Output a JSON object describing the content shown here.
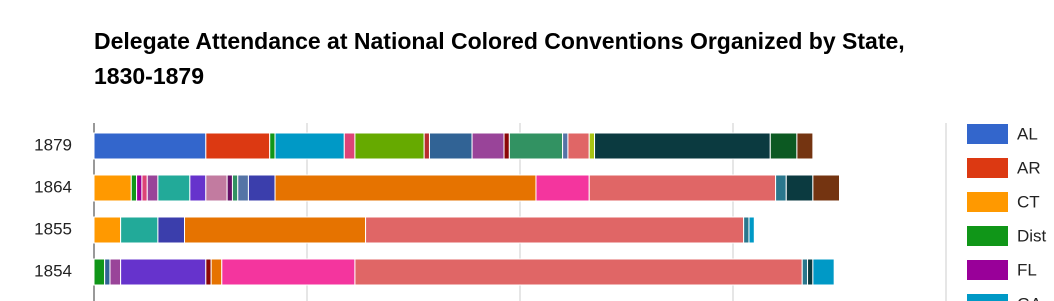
{
  "chart_data": {
    "type": "stacked-bar-horizontal",
    "title": "Delegate Attendance at National Colored Conventions Organized by State, 1830-1879",
    "categories": [
      "1879",
      "1864",
      "1855",
      "1854"
    ],
    "xlim": [
      0,
      160
    ],
    "xticks": [
      0,
      40,
      80,
      120,
      160
    ],
    "grid": true,
    "legend": "right",
    "series": [
      {
        "name": "AL",
        "color": "#3366cc",
        "values": [
          21,
          0,
          0,
          0
        ]
      },
      {
        "name": "AR",
        "color": "#dc3912",
        "values": [
          12,
          0,
          0,
          0
        ]
      },
      {
        "name": "CT",
        "color": "#ff9900",
        "values": [
          0,
          7,
          5,
          0
        ]
      },
      {
        "name": "Dist",
        "color": "#109618",
        "values": [
          1,
          1,
          0,
          2
        ]
      },
      {
        "name": "FL",
        "color": "#990099",
        "values": [
          0,
          1,
          0,
          0
        ]
      },
      {
        "name": "GA",
        "color": "#0099c6",
        "values": [
          13,
          0,
          0,
          0
        ]
      },
      {
        "color": "#dd4477",
        "values": [
          2,
          1,
          0,
          0
        ]
      },
      {
        "color": "#66aa00",
        "values": [
          13,
          0,
          0,
          0
        ]
      },
      {
        "color": "#b82e2e",
        "values": [
          1,
          0,
          0,
          0
        ]
      },
      {
        "color": "#316395",
        "values": [
          8,
          0,
          0,
          1
        ]
      },
      {
        "color": "#994499",
        "values": [
          6,
          2,
          0,
          2
        ]
      },
      {
        "color": "#22aa99",
        "values": [
          0,
          6,
          7,
          0
        ]
      },
      {
        "color": "#6633cc",
        "values": [
          0,
          3,
          0,
          16
        ]
      },
      {
        "color": "#c27ba0",
        "values": [
          0,
          4,
          0,
          0
        ]
      },
      {
        "color": "#8b0707",
        "values": [
          1,
          0,
          0,
          1
        ]
      },
      {
        "color": "#651067",
        "values": [
          0,
          1,
          0,
          0
        ]
      },
      {
        "color": "#329262",
        "values": [
          10,
          1,
          0,
          0
        ]
      },
      {
        "color": "#5574a6",
        "values": [
          1,
          2,
          0,
          0
        ]
      },
      {
        "color": "#3b3eac",
        "values": [
          0,
          5,
          5,
          0
        ]
      },
      {
        "color": "#e67300",
        "values": [
          0,
          49,
          34,
          2
        ]
      },
      {
        "color": "#f4359e",
        "values": [
          0,
          10,
          0,
          25
        ]
      },
      {
        "color": "#e06666",
        "values": [
          4,
          35,
          71,
          84
        ]
      },
      {
        "color": "#a9c413",
        "values": [
          1,
          0,
          0,
          0
        ]
      },
      {
        "color": "#2a778d",
        "values": [
          0,
          2,
          1,
          1
        ]
      },
      {
        "color": "#0b3a40",
        "values": [
          33,
          5,
          0,
          1
        ]
      },
      {
        "color": "#0c5922",
        "values": [
          5,
          0,
          0,
          0
        ]
      },
      {
        "color": "#743411",
        "values": [
          3,
          5,
          0,
          0
        ]
      },
      {
        "color": "#0099c6",
        "values": [
          0,
          0,
          1,
          4
        ]
      }
    ]
  }
}
